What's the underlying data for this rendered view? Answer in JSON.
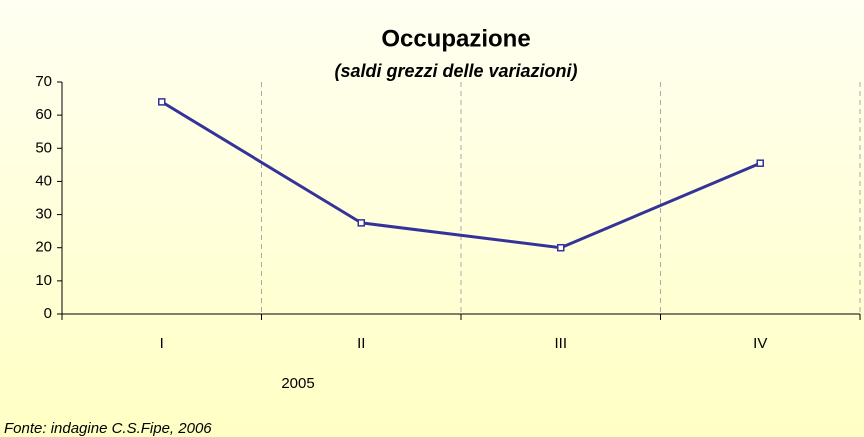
{
  "chart_data": {
    "type": "line",
    "title": "Occupazione",
    "subtitle": "(saldi grezzi delle variazioni)",
    "categories": [
      "I",
      "II",
      "III",
      "IV"
    ],
    "category_group": "2005",
    "series": [
      {
        "name": "Occupazione",
        "color": "#333399",
        "values": [
          64,
          27.5,
          20,
          45.5
        ]
      }
    ],
    "ylim": [
      0,
      70
    ],
    "yticks": [
      0,
      10,
      20,
      30,
      40,
      50,
      60,
      70
    ],
    "grid": "x",
    "legend": false,
    "source": "Fonte: indagine C.S.Fipe, 2006"
  }
}
